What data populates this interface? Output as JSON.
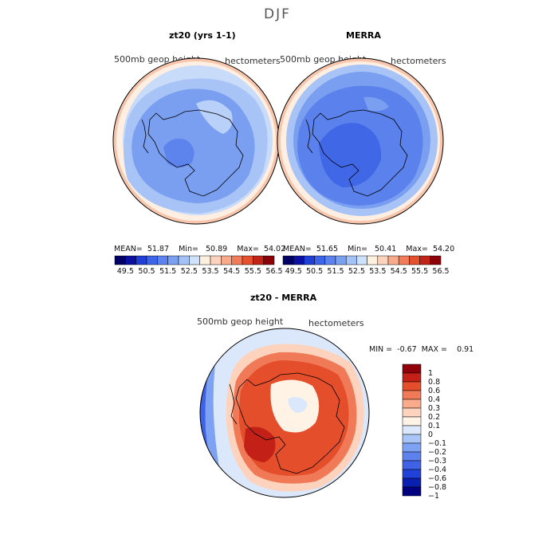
{
  "figure": {
    "title": "DJF"
  },
  "panels": [
    {
      "title": "zt20 (yrs 1-1)",
      "variable": "500mb geop height",
      "units": "hectometers",
      "stats": {
        "mean_label": "MEAN=",
        "mean": "51.87",
        "min_label": "Min=",
        "min": "50.89",
        "max_label": "Max=",
        "max": "54.02"
      }
    },
    {
      "title": "MERRA",
      "variable": "500mb geop height",
      "units": "hectometers",
      "stats": {
        "mean_label": "MEAN=",
        "mean": "51.65",
        "min_label": "Min=",
        "min": "50.41",
        "max_label": "Max=",
        "max": "54.20"
      }
    },
    {
      "title": "zt20 - MERRA",
      "variable": "500mb geop height",
      "units": "hectometers",
      "stats": {
        "min_label": "MIN =",
        "min": "-0.67",
        "max_label": "MAX =",
        "max": "0.91"
      }
    }
  ],
  "colors": {
    "abs_scale": [
      "#000066",
      "#0a10a0",
      "#1f3fd6",
      "#3d64e8",
      "#5b82ef",
      "#7aa0f2",
      "#a3c2f7",
      "#cfe2fb",
      "#fff1de",
      "#fdd3bd",
      "#f8aa8a",
      "#f17c5a",
      "#e5512d",
      "#c22418",
      "#8c0008"
    ],
    "diff_scale": [
      "#000080",
      "#0a1fb0",
      "#2142d8",
      "#3f62e6",
      "#5d82ee",
      "#7ea2f3",
      "#a9c5f7",
      "#dbe8fb",
      "#fff3e6",
      "#fdd3bd",
      "#f9ab8c",
      "#f07a58",
      "#e44e2a",
      "#c32017",
      "#900009"
    ],
    "map_bg": "#ffffff"
  },
  "chart_data": [
    {
      "type": "heatmap",
      "title": "zt20 (yrs 1-1)",
      "projection": "south polar stereographic",
      "variable": "500mb geop height",
      "units": "hectometers",
      "mean": 51.87,
      "min": 50.89,
      "max": 54.02,
      "colorbar_ticks": [
        "49.5",
        "50.5",
        "51.5",
        "52.5",
        "53.5",
        "54.5",
        "55.5",
        "56.5"
      ]
    },
    {
      "type": "heatmap",
      "title": "MERRA",
      "projection": "south polar stereographic",
      "variable": "500mb geop height",
      "units": "hectometers",
      "mean": 51.65,
      "min": 50.41,
      "max": 54.2,
      "colorbar_ticks": [
        "49.5",
        "50.5",
        "51.5",
        "52.5",
        "53.5",
        "54.5",
        "55.5",
        "56.5"
      ]
    },
    {
      "type": "heatmap",
      "title": "zt20 - MERRA",
      "projection": "south polar stereographic",
      "variable": "500mb geop height",
      "units": "hectometers",
      "min": -0.67,
      "max": 0.91,
      "colorbar_ticks": [
        "1",
        "0.8",
        "0.6",
        "0.4",
        "0.3",
        "0.2",
        "0.1",
        "0",
        "−0.1",
        "−0.2",
        "−0.3",
        "−0.4",
        "−0.6",
        "−0.8",
        "−1"
      ]
    }
  ]
}
